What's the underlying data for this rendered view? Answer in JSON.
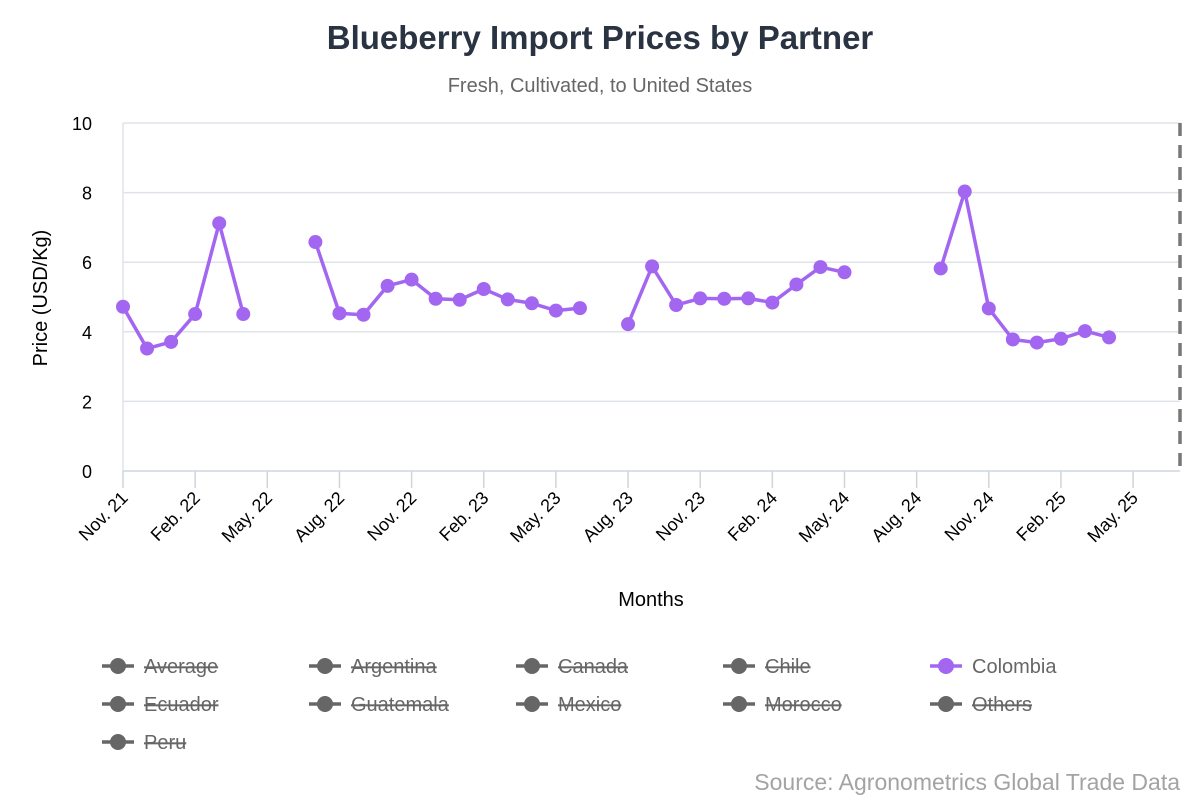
{
  "chart_data": {
    "type": "line",
    "title": "Blueberry Import Prices by Partner",
    "subtitle": "Fresh, Cultivated, to United States",
    "xlabel": "Months",
    "ylabel": "Price (USD/Kg)",
    "ylim": [
      0,
      10
    ],
    "yticks": [
      0,
      2,
      4,
      6,
      8,
      10
    ],
    "grid": true,
    "x_ticks": [
      "Nov. 21",
      "Feb. 22",
      "May. 22",
      "Aug. 22",
      "Nov. 22",
      "Feb. 23",
      "May. 23",
      "Aug. 23",
      "Nov. 23",
      "Feb. 24",
      "May. 24",
      "Aug. 24",
      "Nov. 24",
      "Feb. 25",
      "May. 25"
    ],
    "x": [
      "2021-11",
      "2021-12",
      "2022-01",
      "2022-02",
      "2022-03",
      "2022-04",
      "2022-05",
      "2022-06",
      "2022-07",
      "2022-08",
      "2022-09",
      "2022-10",
      "2022-11",
      "2022-12",
      "2023-01",
      "2023-02",
      "2023-03",
      "2023-04",
      "2023-05",
      "2023-06",
      "2023-07",
      "2023-08",
      "2023-09",
      "2023-10",
      "2023-11",
      "2023-12",
      "2024-01",
      "2024-02",
      "2024-03",
      "2024-04",
      "2024-05",
      "2024-06",
      "2024-07",
      "2024-08",
      "2024-09",
      "2024-10",
      "2024-11",
      "2024-12",
      "2025-01",
      "2025-02",
      "2025-03",
      "2025-04",
      "2025-05",
      "2025-06"
    ],
    "series": [
      {
        "name": "Colombia",
        "color": "#a366f0",
        "values": [
          4.72,
          3.52,
          3.71,
          4.51,
          7.12,
          4.51,
          null,
          null,
          6.58,
          4.53,
          4.49,
          5.32,
          5.5,
          4.95,
          4.92,
          5.23,
          4.93,
          4.82,
          4.61,
          4.68,
          null,
          4.22,
          5.88,
          4.77,
          4.96,
          4.95,
          4.96,
          4.84,
          5.36,
          5.86,
          5.71,
          null,
          null,
          null,
          5.82,
          8.03,
          4.67,
          3.78,
          3.69,
          3.8,
          4.02,
          3.84,
          null,
          null
        ]
      }
    ],
    "legend": {
      "placement": "bottom",
      "items": [
        {
          "label": "Average",
          "active": false
        },
        {
          "label": "Argentina",
          "active": false
        },
        {
          "label": "Canada",
          "active": false
        },
        {
          "label": "Chile",
          "active": false
        },
        {
          "label": "Colombia",
          "active": true
        },
        {
          "label": "Ecuador",
          "active": false
        },
        {
          "label": "Guatemala",
          "active": false
        },
        {
          "label": "Mexico",
          "active": false
        },
        {
          "label": "Morocco",
          "active": false
        },
        {
          "label": "Others",
          "active": false
        },
        {
          "label": "Peru",
          "active": false
        }
      ]
    },
    "inactive_color": "#666666",
    "source": "Source: Agronometrics Global Trade Data"
  }
}
